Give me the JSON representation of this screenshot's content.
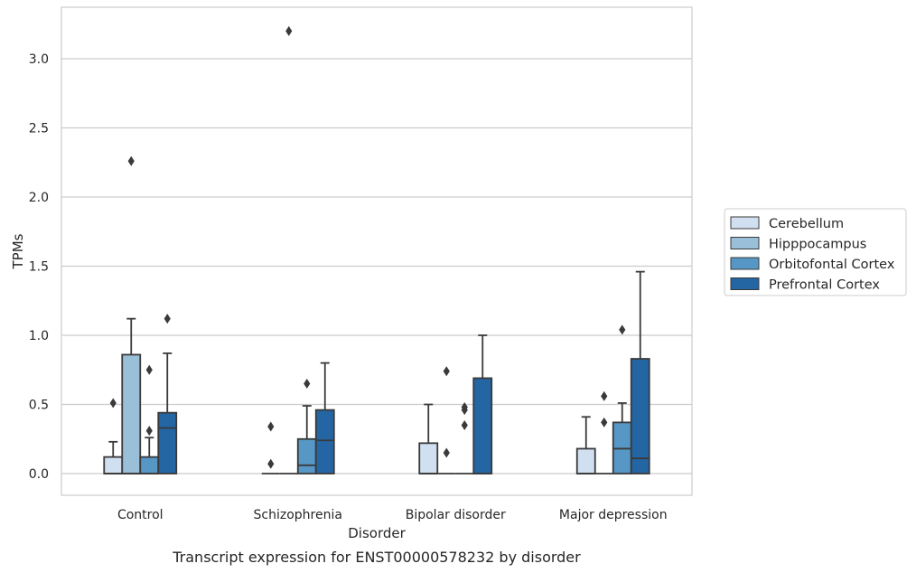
{
  "chart_data": {
    "type": "box",
    "caption": "Transcript expression for ENST00000578232 by disorder",
    "xlabel": "Disorder",
    "ylabel": "TPMs",
    "ylim": [
      -0.15,
      3.38
    ],
    "yticks": [
      0.0,
      0.5,
      1.0,
      1.5,
      2.0,
      2.5,
      3.0
    ],
    "grid": "horizontal",
    "legend_position": "right",
    "categories": [
      "Control",
      "Schizophrenia",
      "Bipolar disorder",
      "Major depression"
    ],
    "series": [
      {
        "name": "Cerebellum",
        "color": "#d0e0f0",
        "boxes": [
          {
            "q1": 0.0,
            "median": 0.0,
            "q3": 0.12,
            "whisker_low": 0.0,
            "whisker_high": 0.23,
            "outliers": [
              0.51
            ]
          },
          {
            "q1": 0.0,
            "median": 0.0,
            "q3": 0.0,
            "whisker_low": 0.0,
            "whisker_high": 0.0,
            "outliers": [
              0.07,
              0.34
            ]
          },
          {
            "q1": 0.0,
            "median": 0.0,
            "q3": 0.22,
            "whisker_low": 0.0,
            "whisker_high": 0.5,
            "outliers": []
          },
          {
            "q1": 0.0,
            "median": 0.0,
            "q3": 0.18,
            "whisker_low": 0.0,
            "whisker_high": 0.41,
            "outliers": []
          }
        ]
      },
      {
        "name": "Hipppocampus",
        "color": "#9abfd9",
        "boxes": [
          {
            "q1": 0.0,
            "median": 0.0,
            "q3": 0.86,
            "whisker_low": 0.0,
            "whisker_high": 1.12,
            "outliers": [
              2.26
            ]
          },
          {
            "q1": 0.0,
            "median": 0.0,
            "q3": 0.0,
            "whisker_low": 0.0,
            "whisker_high": 0.0,
            "outliers": [
              3.2
            ]
          },
          {
            "q1": 0.0,
            "median": 0.0,
            "q3": 0.0,
            "whisker_low": 0.0,
            "whisker_high": 0.0,
            "outliers": [
              0.15,
              0.74
            ]
          },
          {
            "q1": 0.0,
            "median": 0.0,
            "q3": 0.0,
            "whisker_low": 0.0,
            "whisker_high": 0.0,
            "outliers": [
              0.37,
              0.56
            ]
          }
        ]
      },
      {
        "name": "Orbitofontal Cortex",
        "color": "#5697c5",
        "boxes": [
          {
            "q1": 0.0,
            "median": 0.0,
            "q3": 0.12,
            "whisker_low": 0.0,
            "whisker_high": 0.26,
            "outliers": [
              0.31,
              0.75
            ]
          },
          {
            "q1": 0.0,
            "median": 0.06,
            "q3": 0.25,
            "whisker_low": 0.0,
            "whisker_high": 0.49,
            "outliers": [
              0.65
            ]
          },
          {
            "q1": 0.0,
            "median": 0.0,
            "q3": 0.0,
            "whisker_low": 0.0,
            "whisker_high": 0.0,
            "outliers": [
              0.35,
              0.46,
              0.48
            ]
          },
          {
            "q1": 0.0,
            "median": 0.18,
            "q3": 0.37,
            "whisker_low": 0.0,
            "whisker_high": 0.51,
            "outliers": [
              1.04
            ]
          }
        ]
      },
      {
        "name": "Prefrontal Cortex",
        "color": "#2465a4",
        "boxes": [
          {
            "q1": 0.0,
            "median": 0.33,
            "q3": 0.44,
            "whisker_low": 0.0,
            "whisker_high": 0.87,
            "outliers": [
              1.12
            ]
          },
          {
            "q1": 0.0,
            "median": 0.24,
            "q3": 0.46,
            "whisker_low": 0.0,
            "whisker_high": 0.8,
            "outliers": []
          },
          {
            "q1": 0.0,
            "median": 0.0,
            "q3": 0.69,
            "whisker_low": 0.0,
            "whisker_high": 1.0,
            "outliers": []
          },
          {
            "q1": 0.0,
            "median": 0.11,
            "q3": 0.83,
            "whisker_low": 0.0,
            "whisker_high": 1.46,
            "outliers": []
          }
        ]
      }
    ]
  }
}
